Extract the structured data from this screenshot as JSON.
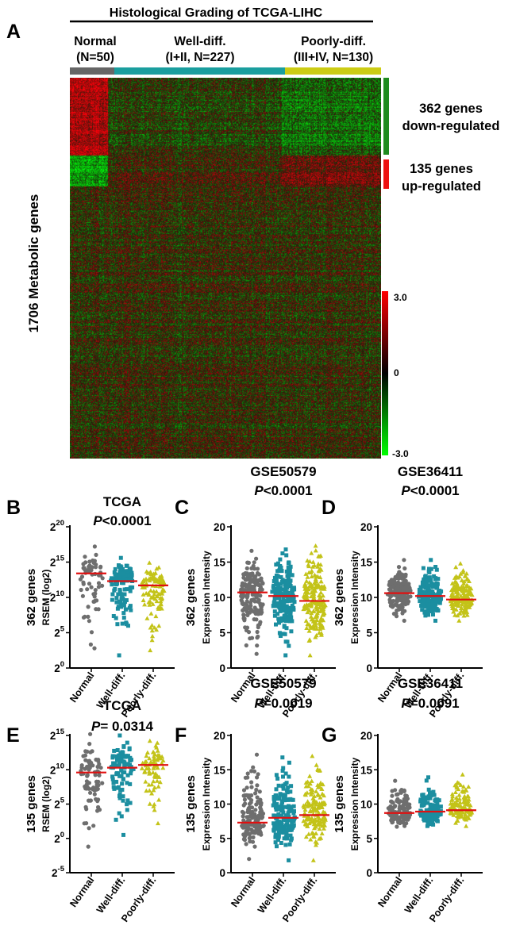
{
  "heatmap_panel": {
    "letter": "A",
    "title": "Histological Grading of TCGA-LIHC",
    "row_label": "1706 Metabolic genes",
    "groups": [
      {
        "line1": "Normal",
        "line2": "(N=50)",
        "color": "#666666",
        "n": 50
      },
      {
        "line1": "Well-diff.",
        "line2": "(I+II, N=227)",
        "color": "#1a9e9e",
        "n": 227
      },
      {
        "line1": "Poorly-diff.",
        "line2": "(III+IV, N=130)",
        "color": "#cccc14",
        "n": 130
      }
    ],
    "annotations": [
      {
        "line1": "362 genes",
        "line2": "down-regulated",
        "color": "#1e8c1e"
      },
      {
        "line1": "135 genes",
        "line2": "up-regulated",
        "color": "#ee1111"
      }
    ],
    "colorbar": {
      "max_label": "3.0",
      "mid_label": "0",
      "min_label": "-3.0",
      "high_color": "#ff0000",
      "mid_color": "#000000",
      "low_color": "#00ff00"
    }
  },
  "group_colors": {
    "Normal": "#6e6e6e",
    "Well-diff.": "#1b8ea0",
    "Poorly-diff.": "#c3c318"
  },
  "mean_line_color": "#e01010",
  "chart_data": [
    {
      "panel": "B",
      "type": "scatter",
      "title": "TCGA",
      "p_prefix": "P",
      "p_text": "<0.0001",
      "ylabel": "362 genes",
      "ylabel2": "RSEM (log2)",
      "scale": "log2",
      "ticks": [
        "0",
        "5",
        "10",
        "15",
        "20"
      ],
      "ylim": [
        0,
        20
      ],
      "categories": [
        "Normal",
        "Well-diff.",
        "Poorly-diff."
      ],
      "markers": [
        "circle",
        "square",
        "triangle"
      ],
      "means": [
        13.4,
        12.3,
        11.7
      ],
      "mins": [
        2.8,
        1.8,
        2.5
      ],
      "maxs": [
        17.2,
        15.6,
        14.9
      ],
      "counts": [
        65,
        120,
        110
      ]
    },
    {
      "panel": "C",
      "type": "scatter",
      "title": "GSE50579",
      "p_prefix": "P",
      "p_text": "<0.0001",
      "ylabel": "362 genes",
      "ylabel2": "Expression Intensity",
      "scale": "linear",
      "ticks": [
        "0",
        "5",
        "10",
        "15",
        "20"
      ],
      "ylim": [
        0,
        20
      ],
      "categories": [
        "Normal",
        "Well-diff.",
        "Poorly-diff."
      ],
      "markers": [
        "circle",
        "square",
        "triangle"
      ],
      "means": [
        10.7,
        10.2,
        9.5
      ],
      "mins": [
        2.0,
        1.8,
        1.8
      ],
      "maxs": [
        16.6,
        16.8,
        17.3
      ],
      "counts": [
        170,
        190,
        190
      ]
    },
    {
      "panel": "D",
      "type": "scatter",
      "title": "GSE36411",
      "p_prefix": "P",
      "p_text": "<0.0001",
      "ylabel": "362 genes",
      "ylabel2": "Expression Intensity",
      "scale": "linear",
      "ticks": [
        "0",
        "5",
        "10",
        "15",
        "20"
      ],
      "ylim": [
        0,
        20
      ],
      "categories": [
        "Normal",
        "Well-diff.",
        "Poorly-diff."
      ],
      "markers": [
        "circle",
        "square",
        "triangle"
      ],
      "means": [
        10.6,
        10.2,
        9.7
      ],
      "mins": [
        6.7,
        6.7,
        6.7
      ],
      "maxs": [
        15.3,
        15.3,
        14.8
      ],
      "counts": [
        170,
        180,
        170
      ]
    },
    {
      "panel": "E",
      "type": "scatter",
      "title": "TCGA",
      "p_prefix": "P",
      "p_text": "= 0.0314",
      "ylabel": "135 genes",
      "ylabel2": "RSEM (log2)",
      "scale": "log2",
      "ticks": [
        "-5",
        "0",
        "5",
        "10",
        "15"
      ],
      "ylim": [
        -5,
        15
      ],
      "categories": [
        "Normal",
        "Well-diff.",
        "Poorly-diff."
      ],
      "markers": [
        "circle",
        "square",
        "triangle"
      ],
      "means": [
        9.6,
        10.3,
        10.7
      ],
      "mins": [
        -1.2,
        0.5,
        2.2
      ],
      "maxs": [
        15.2,
        15.0,
        14.2
      ],
      "counts": [
        80,
        95,
        75
      ]
    },
    {
      "panel": "F",
      "type": "scatter",
      "title": "GSE50579",
      "p_prefix": "P",
      "p_text": "=0.0019",
      "ylabel": "135 genes",
      "ylabel2": "Expression Intensity",
      "scale": "linear",
      "ticks": [
        "0",
        "5",
        "10",
        "15",
        "20"
      ],
      "ylim": [
        0,
        20
      ],
      "categories": [
        "Normal",
        "Well-diff.",
        "Poorly-diff."
      ],
      "markers": [
        "circle",
        "square",
        "triangle"
      ],
      "means": [
        7.3,
        8.0,
        8.4
      ],
      "mins": [
        2.0,
        1.8,
        1.8
      ],
      "maxs": [
        17.2,
        16.8,
        17.0
      ],
      "counts": [
        150,
        160,
        150
      ]
    },
    {
      "panel": "G",
      "type": "scatter",
      "title": "GSE36411",
      "p_prefix": "P",
      "p_text": "=0.0091",
      "ylabel": "135 genes",
      "ylabel2": "Expression Intensity",
      "scale": "linear",
      "ticks": [
        "0",
        "5",
        "10",
        "15",
        "20"
      ],
      "ylim": [
        0,
        20
      ],
      "categories": [
        "Normal",
        "Well-diff.",
        "Poorly-diff."
      ],
      "markers": [
        "circle",
        "square",
        "triangle"
      ],
      "means": [
        8.7,
        8.9,
        9.1
      ],
      "mins": [
        6.7,
        6.8,
        6.8
      ],
      "maxs": [
        13.4,
        13.9,
        14.3
      ],
      "counts": [
        120,
        130,
        120
      ]
    }
  ]
}
